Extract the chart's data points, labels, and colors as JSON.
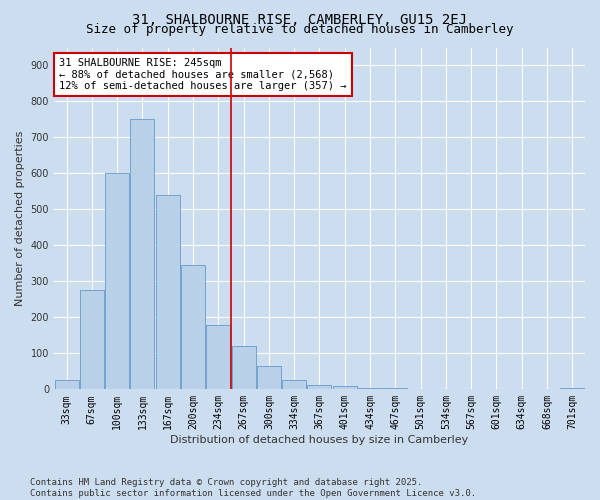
{
  "title": "31, SHALBOURNE RISE, CAMBERLEY, GU15 2EJ",
  "subtitle": "Size of property relative to detached houses in Camberley",
  "xlabel": "Distribution of detached houses by size in Camberley",
  "ylabel": "Number of detached properties",
  "categories": [
    "33sqm",
    "67sqm",
    "100sqm",
    "133sqm",
    "167sqm",
    "200sqm",
    "234sqm",
    "267sqm",
    "300sqm",
    "334sqm",
    "367sqm",
    "401sqm",
    "434sqm",
    "467sqm",
    "501sqm",
    "534sqm",
    "567sqm",
    "601sqm",
    "634sqm",
    "668sqm",
    "701sqm"
  ],
  "values": [
    25,
    275,
    600,
    750,
    540,
    345,
    180,
    120,
    65,
    25,
    12,
    10,
    5,
    3,
    1,
    1,
    1,
    0,
    0,
    0,
    3
  ],
  "bar_color": "#b8d0e8",
  "bar_edge_color": "#6699cc",
  "vline_x_index": 6.5,
  "vline_color": "#cc0000",
  "annotation_text": "31 SHALBOURNE RISE: 245sqm\n← 88% of detached houses are smaller (2,568)\n12% of semi-detached houses are larger (357) →",
  "annotation_box_color": "#cc0000",
  "annotation_text_color": "#000000",
  "ylim": [
    0,
    950
  ],
  "yticks": [
    0,
    100,
    200,
    300,
    400,
    500,
    600,
    700,
    800,
    900
  ],
  "bg_color": "#ccddf0",
  "fig_bg_color": "#ccddf0",
  "grid_color": "#ffffff",
  "footer_line1": "Contains HM Land Registry data © Crown copyright and database right 2025.",
  "footer_line2": "Contains public sector information licensed under the Open Government Licence v3.0.",
  "title_fontsize": 10,
  "subtitle_fontsize": 9,
  "axis_label_fontsize": 8,
  "tick_fontsize": 7,
  "annotation_fontsize": 7.5,
  "footer_fontsize": 6.5
}
